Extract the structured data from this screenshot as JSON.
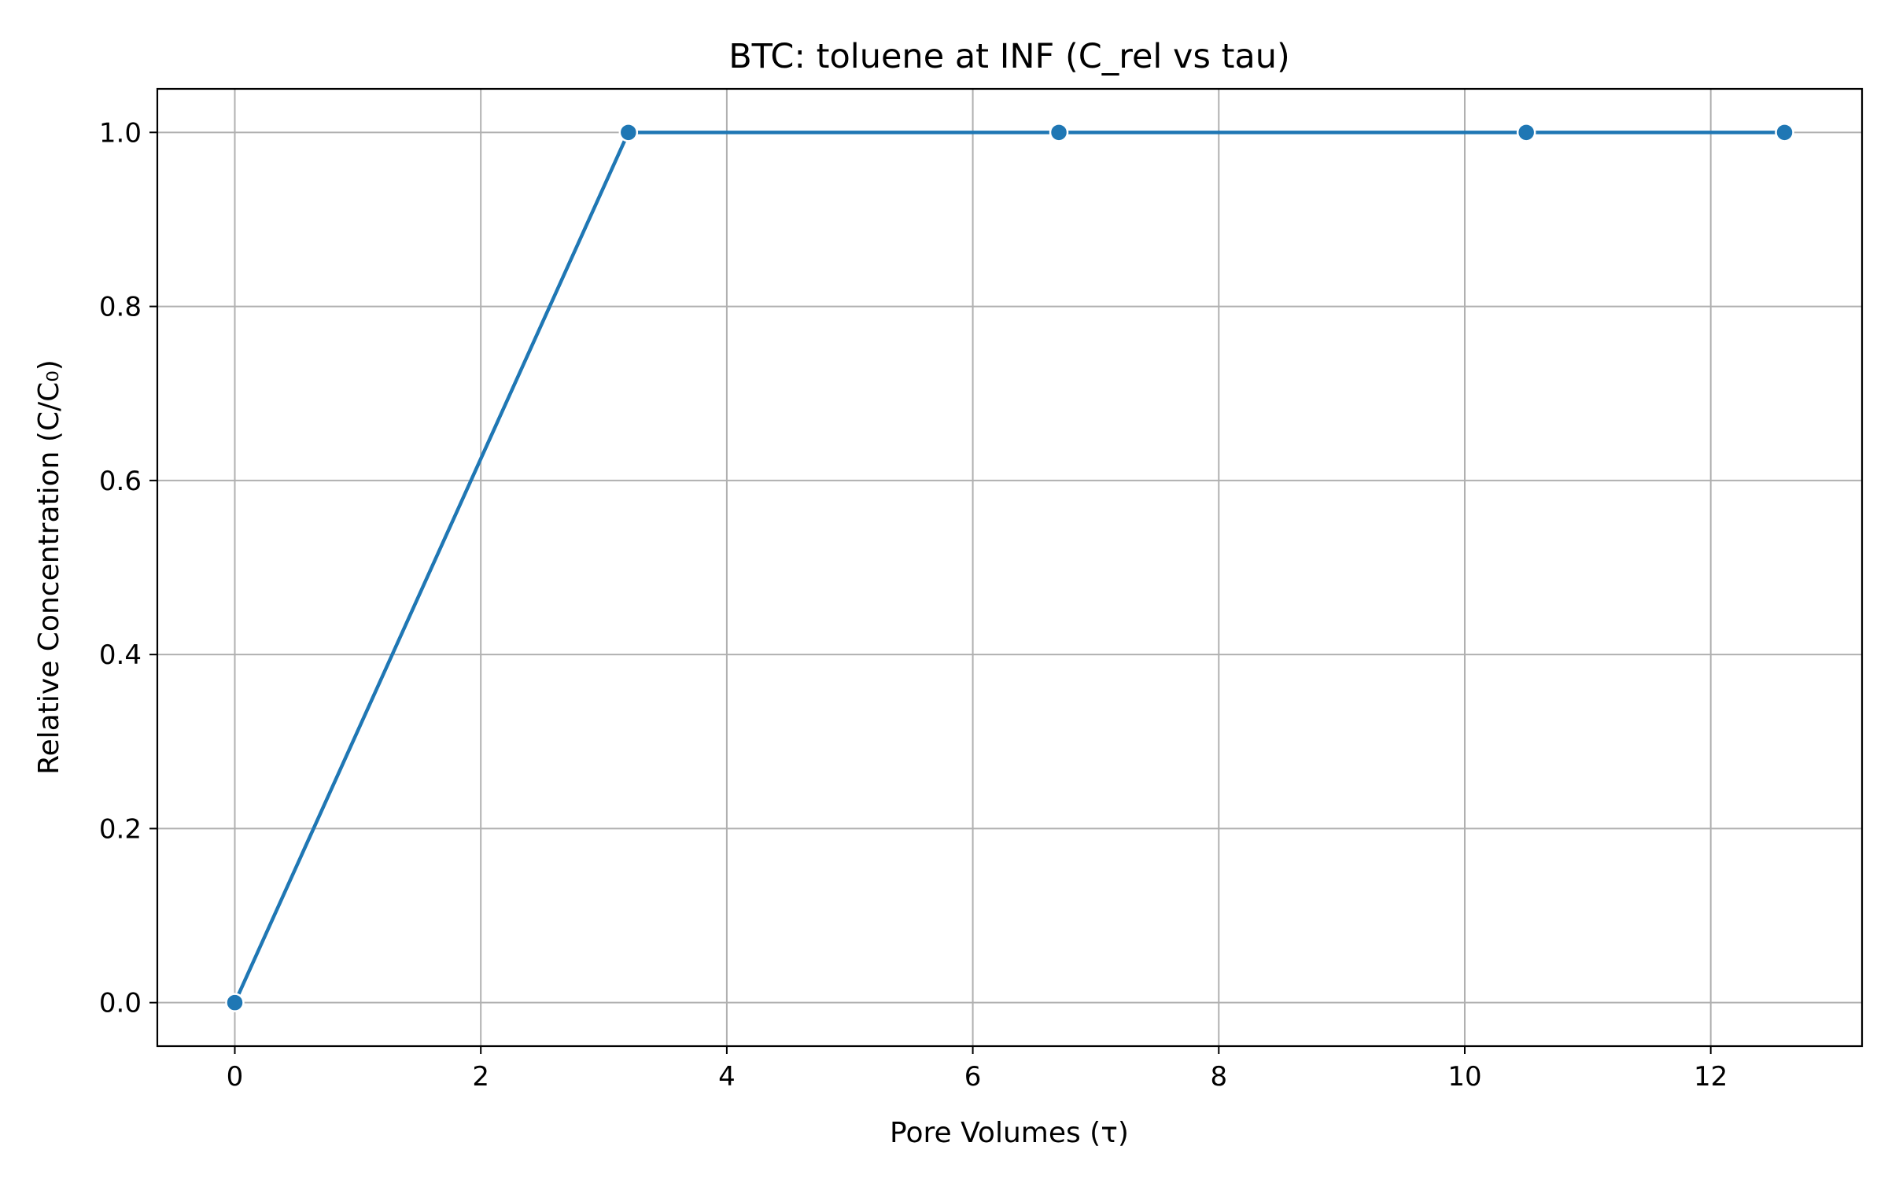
{
  "chart_data": {
    "type": "line",
    "title": "BTC: toluene at INF (C_rel vs tau)",
    "xlabel": "Pore Volumes (τ)",
    "ylabel": "Relative Concentration (C/C₀)",
    "xlim": [
      -0.63,
      13.23
    ],
    "ylim": [
      -0.05,
      1.05
    ],
    "xticks": [
      0,
      2,
      4,
      6,
      8,
      10,
      12
    ],
    "yticks": [
      0.0,
      0.2,
      0.4,
      0.6,
      0.8,
      1.0
    ],
    "xtick_labels": [
      "0",
      "2",
      "4",
      "6",
      "8",
      "10",
      "12"
    ],
    "ytick_labels": [
      "0.0",
      "0.2",
      "0.4",
      "0.6",
      "0.8",
      "1.0"
    ],
    "grid": true,
    "legend": "none",
    "series": [
      {
        "color": "#1f77b4",
        "marker": "circle",
        "x": [
          0.0,
          3.2,
          6.7,
          10.5,
          12.6
        ],
        "y": [
          0.0,
          1.0,
          1.0,
          1.0,
          1.0
        ]
      }
    ]
  }
}
